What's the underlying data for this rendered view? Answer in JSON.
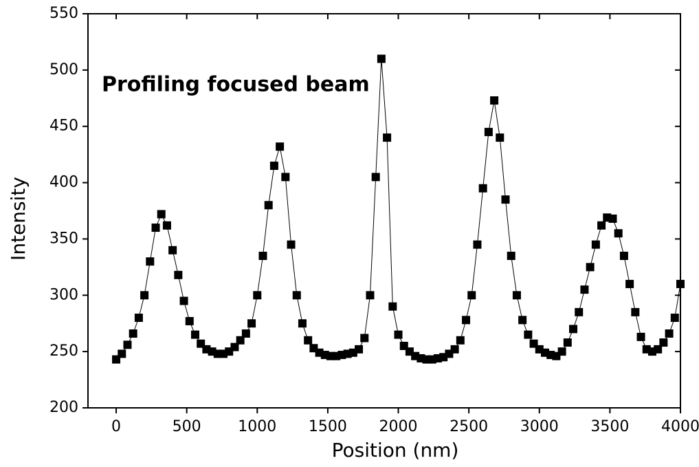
{
  "chart_data": {
    "type": "line",
    "annotation": "Profiling focused beam",
    "x_label": "Position (nm)",
    "y_label": "Intensity",
    "x": [
      0,
      40,
      80,
      120,
      160,
      200,
      240,
      280,
      320,
      360,
      400,
      440,
      480,
      520,
      560,
      600,
      640,
      680,
      720,
      760,
      800,
      840,
      880,
      920,
      960,
      1000,
      1040,
      1080,
      1120,
      1160,
      1200,
      1240,
      1280,
      1320,
      1360,
      1400,
      1440,
      1480,
      1520,
      1560,
      1600,
      1640,
      1680,
      1720,
      1760,
      1800,
      1840,
      1880,
      1920,
      1960,
      2000,
      2040,
      2080,
      2120,
      2160,
      2200,
      2240,
      2280,
      2320,
      2360,
      2400,
      2440,
      2480,
      2520,
      2560,
      2600,
      2640,
      2680,
      2720,
      2760,
      2800,
      2840,
      2880,
      2920,
      2960,
      3000,
      3040,
      3080,
      3120,
      3160,
      3200,
      3240,
      3280,
      3320,
      3360,
      3400,
      3440,
      3480,
      3520,
      3560,
      3600,
      3640,
      3680,
      3720,
      3760,
      3800,
      3840,
      3880,
      3920,
      3960,
      4000
    ],
    "series": [
      {
        "color": "#000000",
        "marker": "square",
        "values": [
          243,
          248,
          256,
          266,
          280,
          300,
          330,
          360,
          372,
          362,
          340,
          318,
          295,
          277,
          265,
          257,
          252,
          250,
          248,
          248,
          250,
          254,
          260,
          266,
          275,
          300,
          335,
          380,
          415,
          432,
          405,
          345,
          300,
          275,
          260,
          253,
          249,
          247,
          246,
          246,
          247,
          248,
          249,
          252,
          262,
          300,
          405,
          510,
          440,
          290,
          265,
          255,
          250,
          246,
          244,
          243,
          243,
          244,
          245,
          248,
          252,
          260,
          278,
          300,
          345,
          395,
          445,
          473,
          440,
          385,
          335,
          300,
          278,
          265,
          257,
          252,
          249,
          247,
          246,
          250,
          258,
          270,
          285,
          305,
          325,
          345,
          362,
          369,
          368,
          355,
          335,
          310,
          285,
          263,
          252,
          250,
          252,
          258,
          266,
          280,
          310
        ]
      }
    ],
    "xlim": [
      -200,
      4000
    ],
    "xticks": [
      0,
      500,
      1000,
      1500,
      2000,
      2500,
      3000,
      3500,
      4000
    ],
    "ylim": [
      200,
      550
    ],
    "yticks": [
      200,
      250,
      300,
      350,
      400,
      450,
      500,
      550
    ]
  }
}
